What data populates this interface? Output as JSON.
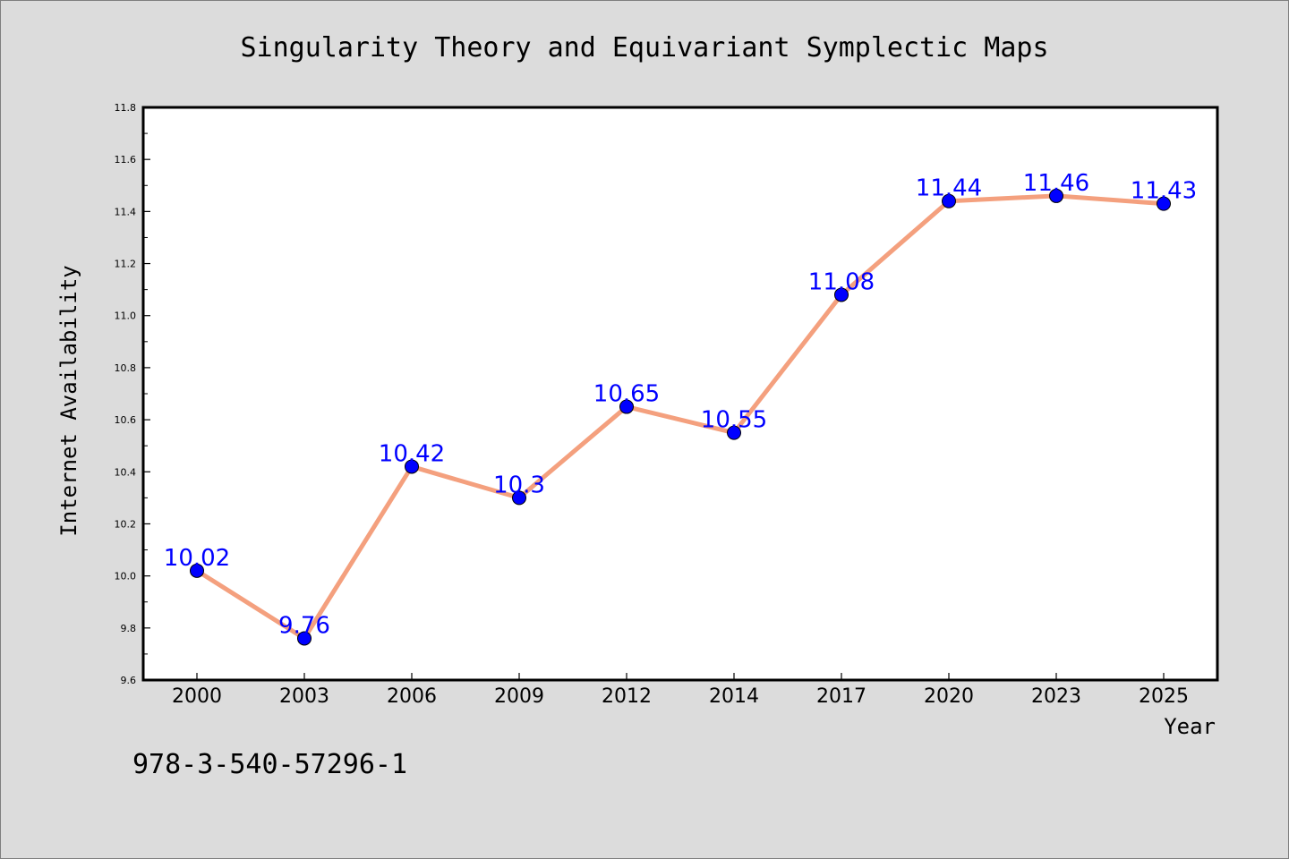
{
  "chart_data": {
    "type": "line",
    "title": "Singularity Theory and Equivariant Symplectic Maps",
    "xlabel": "Year",
    "ylabel": "Internet Availability",
    "categories": [
      "2000",
      "2003",
      "2006",
      "2009",
      "2012",
      "2014",
      "2017",
      "2020",
      "2023",
      "2025"
    ],
    "series": [
      {
        "values": [
          10.02,
          9.76,
          10.42,
          10.3,
          10.65,
          10.55,
          11.08,
          11.44,
          11.46,
          11.43
        ],
        "line_color": "#f4a07e",
        "marker_color": "#0000ff"
      }
    ],
    "data_labels": [
      "10.02",
      "9.76",
      "10.42",
      "10.3",
      "10.65",
      "10.55",
      "11.08",
      "11.44",
      "11.46",
      "11.43"
    ],
    "ylim": [
      9.6,
      11.8
    ],
    "yticks": [
      "9.6",
      "9.8",
      "10.0",
      "10.2",
      "10.4",
      "10.6",
      "10.8",
      "11.0",
      "11.2",
      "11.4",
      "11.6",
      "11.8"
    ],
    "grid": false,
    "legend": false
  },
  "footer": {
    "isbn": "978-3-540-57296-1"
  }
}
